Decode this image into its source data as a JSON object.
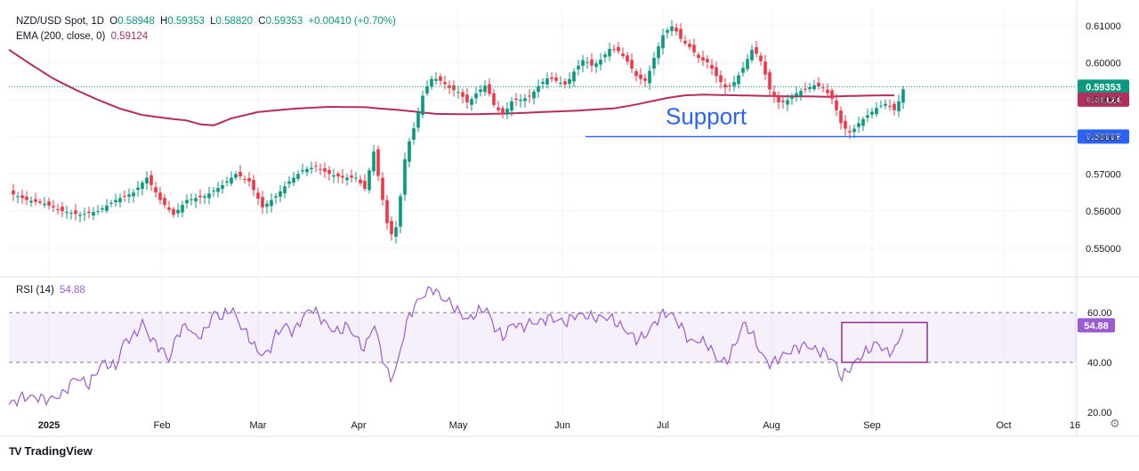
{
  "header": {
    "symbol": "NZD/USD Spot, 1D",
    "o_label": "O",
    "o_value": "0.58948",
    "h_label": "H",
    "h_value": "0.59353",
    "l_label": "L",
    "l_value": "0.58820",
    "c_label": "C",
    "c_value": "0.59353",
    "change": "+0.00410 (+0.70%)",
    "ema_label": "EMA (200, close, 0)",
    "ema_value": "0.59124"
  },
  "rsi_header": {
    "label": "RSI (14)",
    "value": "54.88"
  },
  "brand": {
    "logo": "TV",
    "name": "TradingView"
  },
  "annotation": {
    "support_text": "Support"
  },
  "chart_data": [
    {
      "type": "candlestick",
      "title": "NZD/USD Spot, 1D",
      "ylim": [
        0.5425,
        0.6145
      ],
      "y_ticks": [
        "0.61000",
        "0.60000",
        "0.59000",
        "0.58000",
        "0.57000",
        "0.56000",
        "0.55000"
      ],
      "x_ticks": [
        "2025",
        "Feb",
        "Mar",
        "Apr",
        "May",
        "Jun",
        "Jul",
        "Aug",
        "Sep",
        "Oct",
        "16"
      ],
      "last_price": "0.59353",
      "ema_last": "0.59124",
      "support_level": "0.58008",
      "colors": {
        "up": "#089981",
        "down": "#f23645",
        "ema": "#b22e5c",
        "support": "#2962ff",
        "last_price": "#089981"
      },
      "ema_anchors": [
        [
          0,
          0.6035
        ],
        [
          25,
          0.5995
        ],
        [
          50,
          0.5957
        ],
        [
          75,
          0.5927
        ],
        [
          100,
          0.59
        ],
        [
          125,
          0.5876
        ],
        [
          150,
          0.5859
        ],
        [
          175,
          0.5851
        ],
        [
          200,
          0.5844
        ],
        [
          215,
          0.5834
        ],
        [
          230,
          0.5831
        ],
        [
          250,
          0.585
        ],
        [
          280,
          0.5867
        ],
        [
          320,
          0.5876
        ],
        [
          360,
          0.5881
        ],
        [
          400,
          0.588
        ],
        [
          440,
          0.5872
        ],
        [
          480,
          0.5862
        ],
        [
          520,
          0.5861
        ],
        [
          560,
          0.5863
        ],
        [
          600,
          0.5867
        ],
        [
          640,
          0.5871
        ],
        [
          680,
          0.5877
        ],
        [
          700,
          0.5885
        ],
        [
          720,
          0.5895
        ],
        [
          740,
          0.5905
        ],
        [
          760,
          0.5912
        ],
        [
          780,
          0.5914
        ],
        [
          800,
          0.5913
        ],
        [
          820,
          0.5912
        ],
        [
          840,
          0.5911
        ],
        [
          860,
          0.591
        ],
        [
          880,
          0.5909
        ],
        [
          900,
          0.5909
        ],
        [
          920,
          0.5908
        ],
        [
          940,
          0.591
        ],
        [
          960,
          0.5911
        ],
        [
          980,
          0.5912
        ],
        [
          995,
          0.5912
        ]
      ],
      "price_anchors": [
        [
          0,
          0.565
        ],
        [
          20,
          0.563
        ],
        [
          40,
          0.562
        ],
        [
          60,
          0.56
        ],
        [
          80,
          0.559
        ],
        [
          100,
          0.56
        ],
        [
          120,
          0.563
        ],
        [
          140,
          0.565
        ],
        [
          155,
          0.569
        ],
        [
          170,
          0.563
        ],
        [
          185,
          0.559
        ],
        [
          200,
          0.563
        ],
        [
          220,
          0.564
        ],
        [
          240,
          0.567
        ],
        [
          255,
          0.57
        ],
        [
          270,
          0.568
        ],
        [
          285,
          0.561
        ],
        [
          300,
          0.564
        ],
        [
          315,
          0.568
        ],
        [
          330,
          0.571
        ],
        [
          345,
          0.572
        ],
        [
          360,
          0.57
        ],
        [
          375,
          0.569
        ],
        [
          390,
          0.569
        ],
        [
          400,
          0.566
        ],
        [
          410,
          0.576
        ],
        [
          420,
          0.563
        ],
        [
          428,
          0.553
        ],
        [
          436,
          0.556
        ],
        [
          446,
          0.576
        ],
        [
          456,
          0.583
        ],
        [
          466,
          0.592
        ],
        [
          476,
          0.596
        ],
        [
          486,
          0.595
        ],
        [
          496,
          0.593
        ],
        [
          506,
          0.592
        ],
        [
          516,
          0.589
        ],
        [
          526,
          0.592
        ],
        [
          536,
          0.594
        ],
        [
          546,
          0.588
        ],
        [
          556,
          0.586
        ],
        [
          566,
          0.59
        ],
        [
          576,
          0.59
        ],
        [
          586,
          0.591
        ],
        [
          596,
          0.594
        ],
        [
          606,
          0.596
        ],
        [
          616,
          0.595
        ],
        [
          626,
          0.594
        ],
        [
          636,
          0.598
        ],
        [
          646,
          0.601
        ],
        [
          656,
          0.599
        ],
        [
          666,
          0.601
        ],
        [
          676,
          0.604
        ],
        [
          686,
          0.603
        ],
        [
          696,
          0.6
        ],
        [
          706,
          0.596
        ],
        [
          716,
          0.595
        ],
        [
          726,
          0.602
        ],
        [
          736,
          0.608
        ],
        [
          746,
          0.61
        ],
        [
          756,
          0.606
        ],
        [
          766,
          0.604
        ],
        [
          776,
          0.601
        ],
        [
          786,
          0.6
        ],
        [
          796,
          0.596
        ],
        [
          806,
          0.593
        ],
        [
          816,
          0.595
        ],
        [
          826,
          0.599
        ],
        [
          836,
          0.604
        ],
        [
          846,
          0.6
        ],
        [
          856,
          0.592
        ],
        [
          866,
          0.589
        ],
        [
          876,
          0.59
        ],
        [
          886,
          0.592
        ],
        [
          896,
          0.593
        ],
        [
          906,
          0.594
        ],
        [
          916,
          0.593
        ],
        [
          926,
          0.59
        ],
        [
          936,
          0.583
        ],
        [
          946,
          0.581
        ],
        [
          956,
          0.584
        ],
        [
          966,
          0.586
        ],
        [
          976,
          0.588
        ],
        [
          986,
          0.589
        ],
        [
          996,
          0.587
        ],
        [
          1006,
          0.5935
        ]
      ]
    },
    {
      "type": "line",
      "title": "RSI (14)",
      "ylim": [
        16,
        74
      ],
      "y_ticks": [
        "60.00",
        "40.00",
        "20.00"
      ],
      "band": [
        40,
        60
      ],
      "last_value": "54.88",
      "colors": {
        "line": "#9c5bd1",
        "band": "#9c5bd1",
        "box": "#9c2b8f"
      },
      "highlight_box": {
        "x_days": [
          936,
          1032
        ],
        "y": [
          40,
          56
        ]
      },
      "rsi_anchors": [
        [
          0,
          23
        ],
        [
          15,
          26
        ],
        [
          30,
          26
        ],
        [
          45,
          25
        ],
        [
          60,
          27
        ],
        [
          75,
          34
        ],
        [
          90,
          31
        ],
        [
          105,
          40
        ],
        [
          120,
          38
        ],
        [
          130,
          49
        ],
        [
          140,
          50
        ],
        [
          150,
          56
        ],
        [
          160,
          49
        ],
        [
          170,
          46
        ],
        [
          180,
          41
        ],
        [
          190,
          52
        ],
        [
          200,
          55
        ],
        [
          210,
          50
        ],
        [
          220,
          52
        ],
        [
          230,
          60
        ],
        [
          240,
          58
        ],
        [
          250,
          62
        ],
        [
          260,
          55
        ],
        [
          270,
          50
        ],
        [
          280,
          44
        ],
        [
          290,
          43
        ],
        [
          300,
          51
        ],
        [
          310,
          55
        ],
        [
          320,
          52
        ],
        [
          330,
          58
        ],
        [
          340,
          62
        ],
        [
          350,
          58
        ],
        [
          360,
          54
        ],
        [
          370,
          52
        ],
        [
          380,
          55
        ],
        [
          390,
          50
        ],
        [
          400,
          45
        ],
        [
          410,
          56
        ],
        [
          420,
          42
        ],
        [
          428,
          33
        ],
        [
          436,
          38
        ],
        [
          446,
          55
        ],
        [
          456,
          63
        ],
        [
          466,
          67
        ],
        [
          476,
          70
        ],
        [
          486,
          66
        ],
        [
          496,
          64
        ],
        [
          506,
          60
        ],
        [
          516,
          57
        ],
        [
          526,
          60
        ],
        [
          536,
          62
        ],
        [
          546,
          54
        ],
        [
          556,
          50
        ],
        [
          566,
          56
        ],
        [
          576,
          54
        ],
        [
          586,
          56
        ],
        [
          596,
          56
        ],
        [
          606,
          58
        ],
        [
          616,
          57
        ],
        [
          626,
          56
        ],
        [
          636,
          59
        ],
        [
          646,
          59
        ],
        [
          656,
          58
        ],
        [
          666,
          58
        ],
        [
          676,
          58
        ],
        [
          686,
          55
        ],
        [
          696,
          52
        ],
        [
          706,
          49
        ],
        [
          716,
          51
        ],
        [
          726,
          56
        ],
        [
          736,
          60
        ],
        [
          746,
          59
        ],
        [
          756,
          54
        ],
        [
          766,
          48
        ],
        [
          776,
          49
        ],
        [
          786,
          47
        ],
        [
          796,
          41
        ],
        [
          806,
          40
        ],
        [
          816,
          47
        ],
        [
          826,
          56
        ],
        [
          836,
          51
        ],
        [
          846,
          43
        ],
        [
          856,
          39
        ],
        [
          866,
          42
        ],
        [
          876,
          44
        ],
        [
          886,
          46
        ],
        [
          896,
          47
        ],
        [
          906,
          45
        ],
        [
          916,
          44
        ],
        [
          926,
          41
        ],
        [
          936,
          34
        ],
        [
          946,
          38
        ],
        [
          956,
          42
        ],
        [
          966,
          45
        ],
        [
          976,
          48
        ],
        [
          986,
          44
        ],
        [
          996,
          45
        ],
        [
          1006,
          55
        ]
      ]
    }
  ]
}
